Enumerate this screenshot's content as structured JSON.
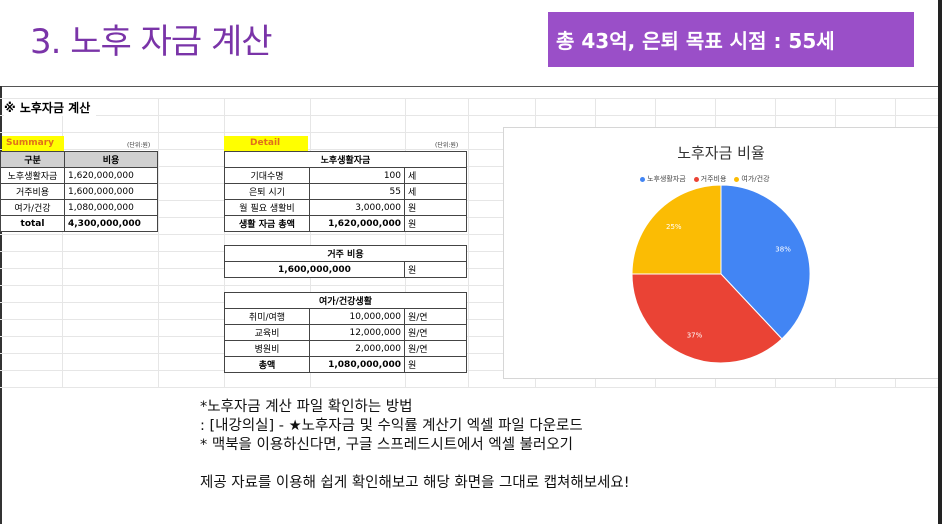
{
  "slide": {
    "title": "3. 노후 자금 계산",
    "badge": "총 43억, 은퇴 목표 시점  : 55세",
    "sheet_heading": "※ 노후자금 계산"
  },
  "summary": {
    "label": "Summary",
    "unit": "(단위:원)",
    "headers": [
      "구분",
      "비용"
    ],
    "rows": [
      {
        "name": "노후생활자금",
        "value": "1,620,000,000"
      },
      {
        "name": "거주비용",
        "value": "1,600,000,000"
      },
      {
        "name": "여가/건강",
        "value": "1,080,000,000"
      },
      {
        "name": "total",
        "value": "4,300,000,000"
      }
    ]
  },
  "detail": {
    "label": "Detail",
    "unit": "(단위:원)",
    "living": {
      "title": "노후생활자금",
      "rows": [
        {
          "name": "기대수명",
          "value": "100",
          "unit": "세"
        },
        {
          "name": "은퇴 시기",
          "value": "55",
          "unit": "세"
        },
        {
          "name": "월 필요 생활비",
          "value": "3,000,000",
          "unit": "원"
        },
        {
          "name": "생활 자금 총액",
          "value": "1,620,000,000",
          "unit": "원"
        }
      ]
    },
    "housing": {
      "title": "거주 비용",
      "value": "1,600,000,000",
      "unit": "원"
    },
    "leisure": {
      "title": "여가/건강생활",
      "rows": [
        {
          "name": "취미/여행",
          "value": "10,000,000",
          "unit": "원/연"
        },
        {
          "name": "교육비",
          "value": "12,000,000",
          "unit": "원/연"
        },
        {
          "name": "병원비",
          "value": "2,000,000",
          "unit": "원/연"
        },
        {
          "name": "총액",
          "value": "1,080,000,000",
          "unit": "원"
        }
      ]
    }
  },
  "chart_data": {
    "type": "pie",
    "title": "노후자금 비율",
    "legend_position": "top",
    "categories": [
      "노후생활자금",
      "거주비용",
      "여가/건강"
    ],
    "values": [
      38,
      37,
      25
    ],
    "labels": [
      "38%",
      "37%",
      "25%"
    ],
    "colors": [
      "#4285f4",
      "#ea4335",
      "#fbbc04"
    ]
  },
  "notes": {
    "line1": "*노후자금 계산 파일 확인하는 방법",
    "line2": ": [내강의실] - ★노후자금 및 수익률 계산기 엑셀 파일 다운로드",
    "line3": "* 맥북을 이용하신다면, 구글 스프레드시트에서 엑셀 불러오기",
    "line4": "제공 자료를 이용해 쉽게 확인해보고 해당 화면을 그대로 캡쳐해보세요!"
  }
}
